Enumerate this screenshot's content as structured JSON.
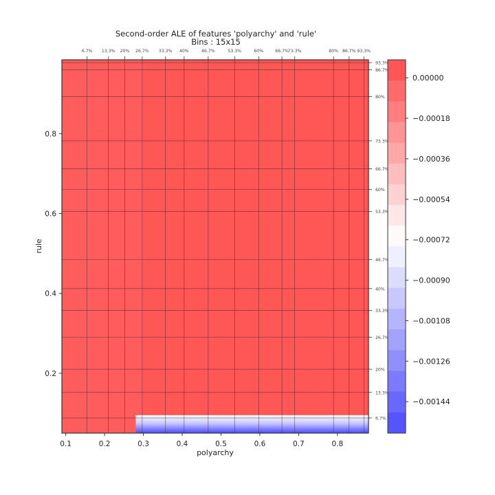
{
  "chart_data": {
    "type": "heatmap",
    "title": "Second-order ALE of features 'polyarchy' and 'rule'",
    "subtitle": "Bins : 15x15",
    "xlabel": "polyarchy",
    "ylabel": "rule",
    "xlim": [
      0.09,
      0.88
    ],
    "ylim": [
      0.05,
      0.985
    ],
    "x_ticks": [
      0.1,
      0.2,
      0.3,
      0.4,
      0.5,
      0.6,
      0.7,
      0.8
    ],
    "x_tick_labels": [
      "0.1",
      "0.2",
      "0.3",
      "0.4",
      "0.5",
      "0.6",
      "0.7",
      "0.8"
    ],
    "y_ticks": [
      0.2,
      0.4,
      0.6,
      0.8
    ],
    "y_tick_labels": [
      "0.2",
      "0.4",
      "0.6",
      "0.8"
    ],
    "x_quantiles": [
      {
        "label": "6.7%",
        "value": 0.155
      },
      {
        "label": "13.3%",
        "value": 0.21
      },
      {
        "label": "20%",
        "value": 0.252
      },
      {
        "label": "26.7%",
        "value": 0.297
      },
      {
        "label": "33.3%",
        "value": 0.357
      },
      {
        "label": "40%",
        "value": 0.405
      },
      {
        "label": "46.7%",
        "value": 0.467
      },
      {
        "label": "53.3%",
        "value": 0.535
      },
      {
        "label": "60%",
        "value": 0.597
      },
      {
        "label": "66.7%",
        "value": 0.657
      },
      {
        "label": "73.3%",
        "value": 0.69
      },
      {
        "label": "80%",
        "value": 0.79
      },
      {
        "label": "86.7%",
        "value": 0.83
      },
      {
        "label": "93.3%",
        "value": 0.868
      }
    ],
    "y_quantiles": [
      {
        "label": "6.7%",
        "value": 0.088
      },
      {
        "label": "13.3%",
        "value": 0.152
      },
      {
        "label": "20%",
        "value": 0.21
      },
      {
        "label": "26.7%",
        "value": 0.29
      },
      {
        "label": "33.3%",
        "value": 0.357
      },
      {
        "label": "40%",
        "value": 0.412
      },
      {
        "label": "46.7%",
        "value": 0.485
      },
      {
        "label": "53.3%",
        "value": 0.605
      },
      {
        "label": "60%",
        "value": 0.66
      },
      {
        "label": "66.7%",
        "value": 0.712
      },
      {
        "label": "73.3%",
        "value": 0.782
      },
      {
        "label": "80%",
        "value": 0.893
      },
      {
        "label": "86.7%",
        "value": 0.96
      },
      {
        "label": "93.3%",
        "value": 0.978
      }
    ],
    "colorbar": {
      "min": -0.00158,
      "max": 8e-05,
      "ticks": [
        0.0,
        -0.00018,
        -0.00036,
        -0.00054,
        -0.00072,
        -0.0009,
        -0.00108,
        -0.00126,
        -0.00144
      ],
      "tick_labels": [
        "0.00000",
        "−0.00018",
        "−0.00036",
        "−0.00054",
        "−0.00072",
        "−0.00090",
        "−0.00108",
        "−0.00126",
        "−0.00144"
      ],
      "levels": 18,
      "cmap": "bwr",
      "color_low": "#4b4bff",
      "color_mid": "#ffffff",
      "color_high": "#ff4b4b"
    },
    "regions": [
      {
        "description": "lighter band",
        "x": [
          0.09,
          0.297
        ],
        "y": [
          0.05,
          0.985
        ],
        "value": 1e-06
      },
      {
        "description": "blue dip",
        "x": [
          0.28,
          0.88
        ],
        "y": [
          0.05,
          0.095
        ],
        "value_min": -0.00155
      },
      {
        "description": "main region",
        "x": [
          0.297,
          0.88
        ],
        "y": [
          0.095,
          0.985
        ],
        "value": 3e-05
      }
    ]
  }
}
